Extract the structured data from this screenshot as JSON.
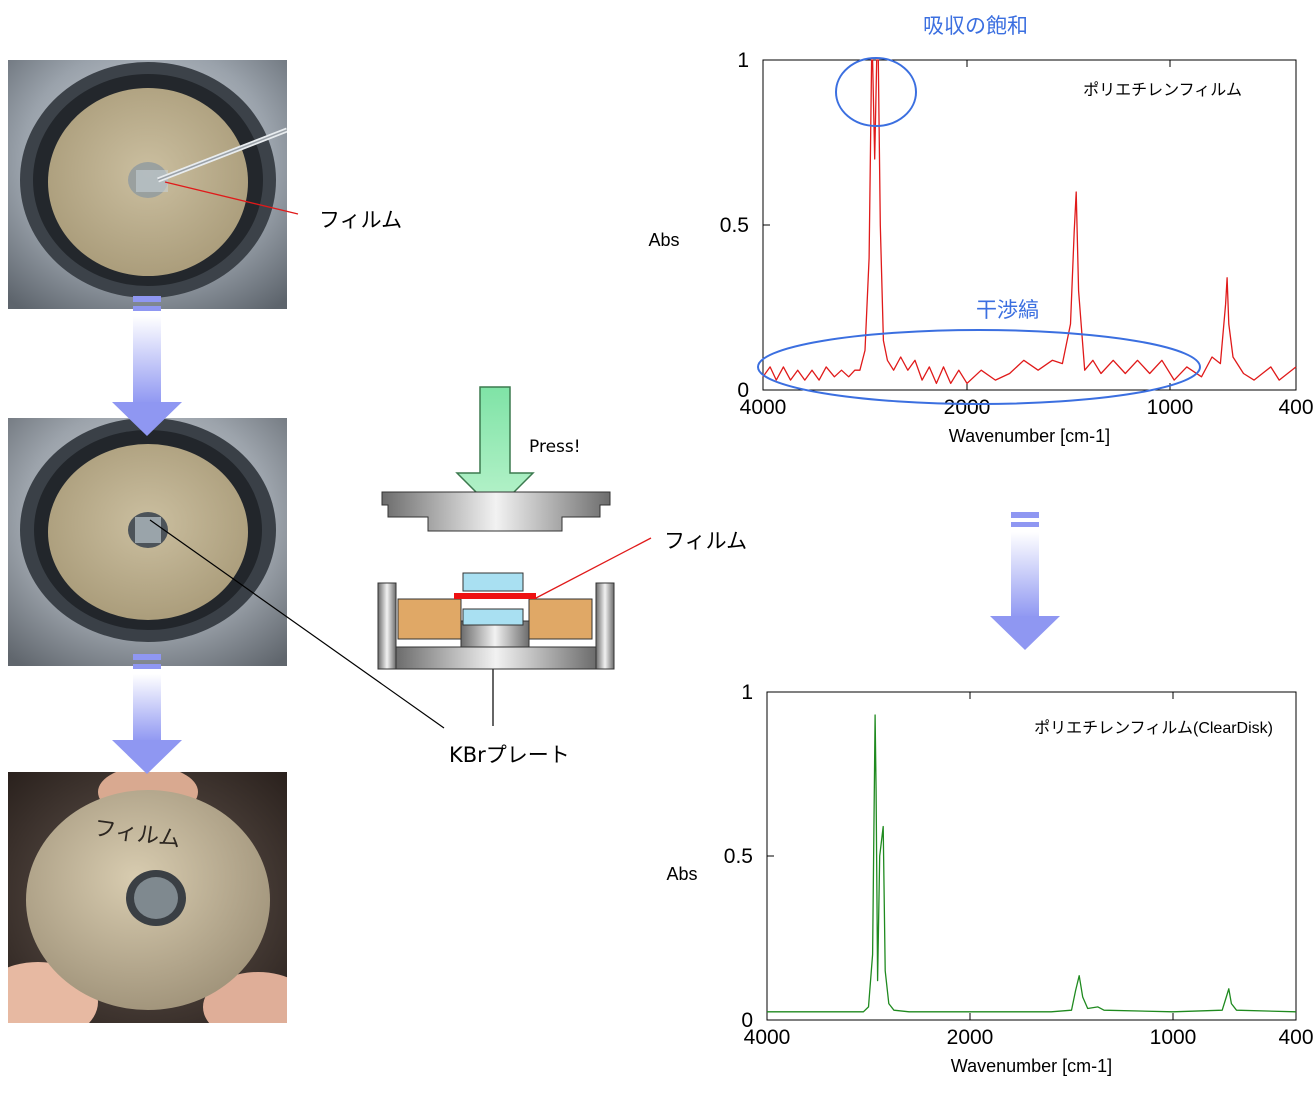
{
  "labels": {
    "film_top": "フィルム",
    "film_mid": "フィルム",
    "kbr_plate": "KBrプレート",
    "press": "Press!",
    "saturation": "吸収の飽和",
    "interference": "干渉縞",
    "photo3_handwriting": "フィルム"
  },
  "chart_data": [
    {
      "type": "line",
      "title": "ポリエチレンフィルム",
      "xlabel": "Wavenumber [cm-1]",
      "ylabel": "Abs",
      "x_ticks": [
        "4000",
        "2000",
        "1000",
        "400"
      ],
      "y_ticks": [
        "0",
        "0.5",
        "1"
      ],
      "ylim": [
        0,
        1
      ],
      "series": [
        {
          "color": "#e01a1a",
          "points": [
            [
              4000,
              0.04
            ],
            [
              3930,
              0.07
            ],
            [
              3870,
              0.03
            ],
            [
              3800,
              0.07
            ],
            [
              3730,
              0.03
            ],
            [
              3660,
              0.06
            ],
            [
              3590,
              0.03
            ],
            [
              3520,
              0.06
            ],
            [
              3450,
              0.03
            ],
            [
              3380,
              0.07
            ],
            [
              3300,
              0.04
            ],
            [
              3230,
              0.06
            ],
            [
              3160,
              0.04
            ],
            [
              3100,
              0.06
            ],
            [
              3050,
              0.06
            ],
            [
              3000,
              0.12
            ],
            [
              2960,
              0.4
            ],
            [
              2935,
              1.0
            ],
            [
              2925,
              1.0
            ],
            [
              2905,
              0.7
            ],
            [
              2885,
              1.0
            ],
            [
              2870,
              1.0
            ],
            [
              2850,
              0.5
            ],
            [
              2820,
              0.15
            ],
            [
              2780,
              0.09
            ],
            [
              2720,
              0.06
            ],
            [
              2650,
              0.1
            ],
            [
              2580,
              0.06
            ],
            [
              2510,
              0.09
            ],
            [
              2440,
              0.03
            ],
            [
              2370,
              0.07
            ],
            [
              2300,
              0.02
            ],
            [
              2230,
              0.07
            ],
            [
              2160,
              0.02
            ],
            [
              2080,
              0.06
            ],
            [
              2000,
              0.02
            ],
            [
              1930,
              0.06
            ],
            [
              1860,
              0.03
            ],
            [
              1790,
              0.05
            ],
            [
              1720,
              0.09
            ],
            [
              1650,
              0.06
            ],
            [
              1580,
              0.09
            ],
            [
              1530,
              0.08
            ],
            [
              1490,
              0.2
            ],
            [
              1472,
              0.48
            ],
            [
              1462,
              0.6
            ],
            [
              1450,
              0.3
            ],
            [
              1420,
              0.06
            ],
            [
              1380,
              0.09
            ],
            [
              1340,
              0.05
            ],
            [
              1280,
              0.09
            ],
            [
              1220,
              0.05
            ],
            [
              1160,
              0.09
            ],
            [
              1100,
              0.05
            ],
            [
              1040,
              0.09
            ],
            [
              980,
              0.03
            ],
            [
              920,
              0.07
            ],
            [
              850,
              0.04
            ],
            [
              800,
              0.1
            ],
            [
              760,
              0.08
            ],
            [
              735,
              0.26
            ],
            [
              728,
              0.34
            ],
            [
              720,
              0.2
            ],
            [
              700,
              0.1
            ],
            [
              650,
              0.05
            ],
            [
              600,
              0.03
            ],
            [
              560,
              0.05
            ],
            [
              520,
              0.07
            ],
            [
              480,
              0.03
            ],
            [
              440,
              0.05
            ],
            [
              400,
              0.07
            ]
          ]
        }
      ]
    },
    {
      "type": "line",
      "title": "ポリエチレンフィルム(ClearDisk)",
      "xlabel": "Wavenumber [cm-1]",
      "ylabel": "Abs",
      "x_ticks": [
        "4000",
        "2000",
        "1000",
        "400"
      ],
      "y_ticks": [
        "0",
        "0.5",
        "1"
      ],
      "ylim": [
        0,
        1
      ],
      "series": [
        {
          "color": "#1f8a1f",
          "points": [
            [
              4000,
              0.025
            ],
            [
              3600,
              0.025
            ],
            [
              3200,
              0.025
            ],
            [
              3050,
              0.025
            ],
            [
              3000,
              0.04
            ],
            [
              2960,
              0.2
            ],
            [
              2935,
              0.93
            ],
            [
              2925,
              0.7
            ],
            [
              2910,
              0.12
            ],
            [
              2890,
              0.5
            ],
            [
              2855,
              0.59
            ],
            [
              2835,
              0.15
            ],
            [
              2800,
              0.05
            ],
            [
              2750,
              0.03
            ],
            [
              2600,
              0.025
            ],
            [
              2000,
              0.025
            ],
            [
              1600,
              0.025
            ],
            [
              1500,
              0.03
            ],
            [
              1480,
              0.09
            ],
            [
              1462,
              0.135
            ],
            [
              1445,
              0.07
            ],
            [
              1420,
              0.035
            ],
            [
              1370,
              0.04
            ],
            [
              1340,
              0.03
            ],
            [
              1000,
              0.025
            ],
            [
              760,
              0.03
            ],
            [
              740,
              0.07
            ],
            [
              728,
              0.095
            ],
            [
              715,
              0.05
            ],
            [
              690,
              0.03
            ],
            [
              400,
              0.025
            ]
          ]
        }
      ]
    }
  ]
}
